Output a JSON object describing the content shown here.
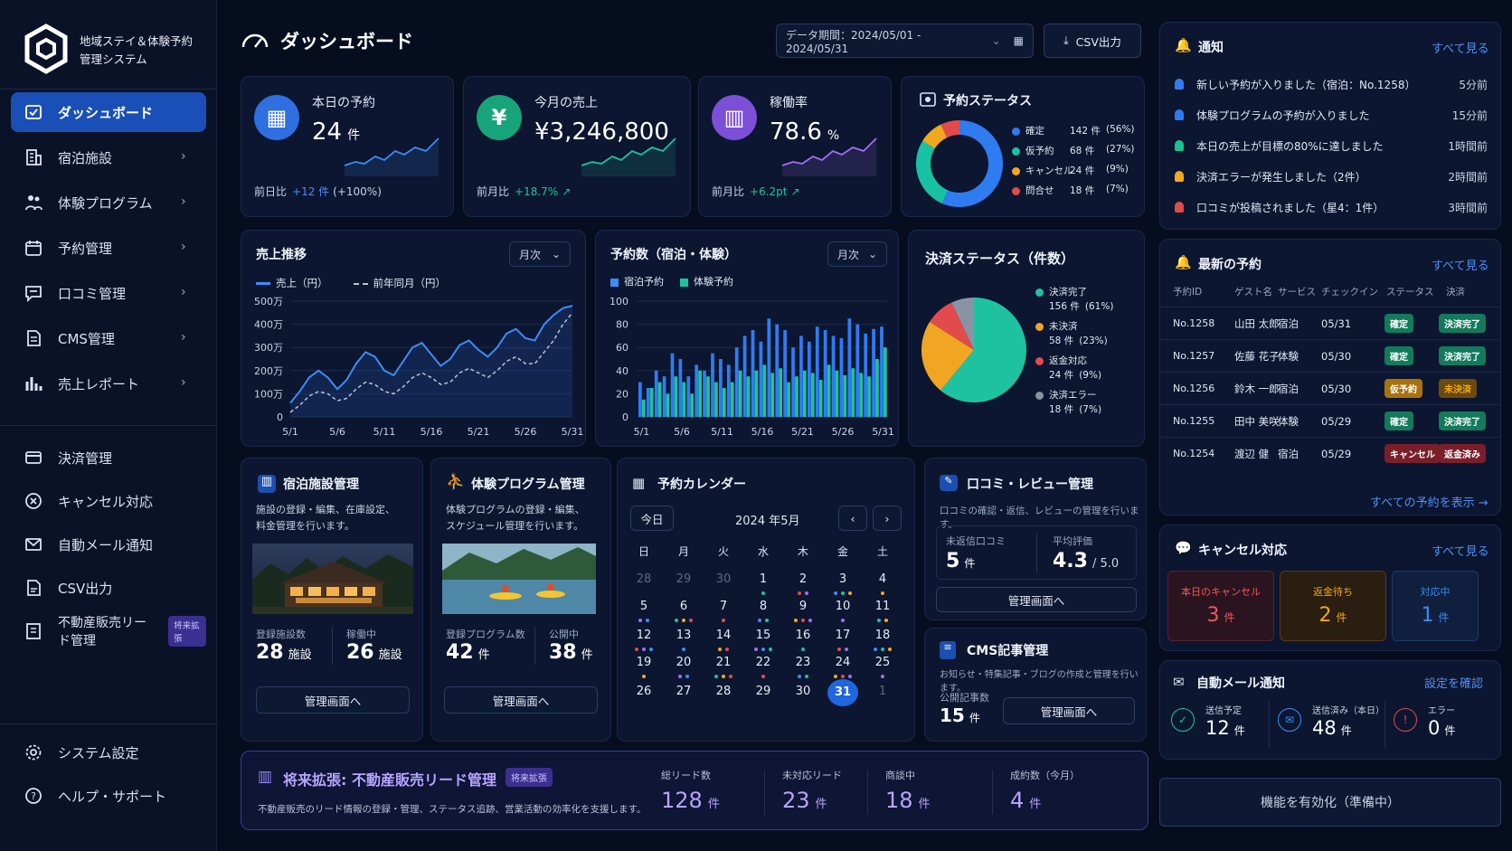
{
  "app": {
    "title_line1": "地域ステイ＆体験予約",
    "title_line2": "管理システム"
  },
  "sidebar": {
    "items": [
      {
        "label": "ダッシュボード",
        "icon": "dashboard-icon"
      },
      {
        "label": "宿泊施設",
        "icon": "building-icon"
      },
      {
        "label": "体験プログラム",
        "icon": "people-icon"
      },
      {
        "label": "予約管理",
        "icon": "calendar-icon"
      },
      {
        "label": "口コミ管理",
        "icon": "chat-icon"
      },
      {
        "label": "CMS管理",
        "icon": "document-icon"
      },
      {
        "label": "売上レポート",
        "icon": "bar-chart-icon"
      }
    ],
    "items2": [
      {
        "label": "決済管理",
        "icon": "card-icon"
      },
      {
        "label": "キャンセル対応",
        "icon": "cancel-icon"
      },
      {
        "label": "自動メール通知",
        "icon": "mail-icon"
      },
      {
        "label": "CSV出力",
        "icon": "csv-icon"
      },
      {
        "label": "不動産販売リード管理",
        "icon": "realestate-icon",
        "badge": "将来拡張"
      }
    ],
    "bottom": [
      {
        "label": "システム設定",
        "icon": "gear-icon"
      },
      {
        "label": "ヘルプ・サポート",
        "icon": "help-icon"
      }
    ]
  },
  "header": {
    "title": "ダッシュボード",
    "period": "データ期間：2024/05/01 - 2024/05/31",
    "csv": "CSV出力"
  },
  "kpi": [
    {
      "label": "本日の予約",
      "value": "24",
      "unit": "件",
      "cmp_label": "前日比",
      "cmp_value": "+12 件",
      "cmp_extra": "(+100%)",
      "color": "#2f6fe0"
    },
    {
      "label": "今月の売上",
      "value": "¥3,246,800",
      "unit": "",
      "cmp_label": "前月比",
      "cmp_value": "+18.7%",
      "cmp_extra": "↗",
      "color": "#17a47a"
    },
    {
      "label": "稼働率",
      "value": "78.6",
      "unit": "%",
      "cmp_label": "前月比",
      "cmp_value": "+6.2pt",
      "cmp_extra": "↗",
      "color": "#7b4fd6"
    }
  ],
  "reservation_status": {
    "title": "予約ステータス",
    "items": [
      {
        "label": "確定",
        "value": "142 件",
        "pct": "(56%)",
        "color": "#2e7cf0",
        "frac": 0.56
      },
      {
        "label": "仮予約",
        "value": "68 件",
        "pct": "(27%)",
        "color": "#19c1a3",
        "frac": 0.27
      },
      {
        "label": "キャンセル",
        "value": "24 件",
        "pct": "(9%)",
        "color": "#f2a81e",
        "frac": 0.09
      },
      {
        "label": "問合せ",
        "value": "18 件",
        "pct": "(7%)",
        "color": "#e24b4b",
        "frac": 0.07
      }
    ]
  },
  "sales_trend": {
    "title": "売上推移",
    "period": "月次",
    "legend_current": "売上（円）",
    "legend_prev": "前年同月（円）",
    "yticks": [
      "500万",
      "400万",
      "300万",
      "200万",
      "100万",
      "0"
    ],
    "xticks": [
      "5/1",
      "5/6",
      "5/11",
      "5/16",
      "5/21",
      "5/26",
      "5/31"
    ]
  },
  "bookings": {
    "title": "予約数（宿泊・体験）",
    "period": "月次",
    "legend_stay": "宿泊予約",
    "legend_exp": "体験予約",
    "yticks": [
      "100",
      "80",
      "60",
      "40",
      "20",
      "0"
    ],
    "xticks": [
      "5/1",
      "5/6",
      "5/11",
      "5/16",
      "5/21",
      "5/26",
      "5/31"
    ]
  },
  "payment": {
    "title": "決済ステータス（件数）",
    "items": [
      {
        "label": "決済完了",
        "value": "156 件",
        "pct": "(61%)",
        "color": "#1fc2a0",
        "frac": 0.61
      },
      {
        "label": "未決済",
        "value": "58 件",
        "pct": "(23%)",
        "color": "#f0a623",
        "frac": 0.23
      },
      {
        "label": "返金対応",
        "value": "24 件",
        "pct": "(9%)",
        "color": "#e24b4b",
        "frac": 0.09
      },
      {
        "label": "決済エラー",
        "value": "18 件",
        "pct": "(7%)",
        "color": "#8a93a6",
        "frac": 0.07
      }
    ]
  },
  "chart_data": [
    {
      "type": "line",
      "title": "売上推移",
      "x": [
        "5/1",
        "5/2",
        "5/3",
        "5/4",
        "5/5",
        "5/6",
        "5/7",
        "5/8",
        "5/9",
        "5/10",
        "5/11",
        "5/12",
        "5/13",
        "5/14",
        "5/15",
        "5/16",
        "5/17",
        "5/18",
        "5/19",
        "5/20",
        "5/21",
        "5/22",
        "5/23",
        "5/24",
        "5/25",
        "5/26",
        "5/27",
        "5/28",
        "5/29",
        "5/30",
        "5/31"
      ],
      "series": [
        {
          "name": "売上（円）",
          "values": [
            60,
            110,
            170,
            200,
            170,
            120,
            160,
            230,
            280,
            260,
            200,
            180,
            240,
            300,
            320,
            270,
            220,
            250,
            310,
            330,
            290,
            260,
            300,
            360,
            380,
            340,
            330,
            400,
            440,
            470,
            480
          ]
        },
        {
          "name": "前年同月（円）",
          "values": [
            20,
            50,
            90,
            110,
            100,
            70,
            80,
            120,
            150,
            140,
            110,
            100,
            130,
            170,
            190,
            170,
            140,
            150,
            190,
            210,
            190,
            170,
            200,
            240,
            260,
            230,
            230,
            280,
            330,
            400,
            450
          ]
        }
      ],
      "ylim": [
        0,
        500
      ]
    },
    {
      "type": "bar",
      "title": "予約数（宿泊・体験）",
      "categories": [
        "5/1",
        "5/2",
        "5/3",
        "5/4",
        "5/5",
        "5/6",
        "5/7",
        "5/8",
        "5/9",
        "5/10",
        "5/11",
        "5/12",
        "5/13",
        "5/14",
        "5/15",
        "5/16",
        "5/17",
        "5/18",
        "5/19",
        "5/20",
        "5/21",
        "5/22",
        "5/23",
        "5/24",
        "5/25",
        "5/26",
        "5/27",
        "5/28",
        "5/29",
        "5/30",
        "5/31"
      ],
      "series": [
        {
          "name": "宿泊予約",
          "values": [
            30,
            25,
            40,
            35,
            55,
            50,
            35,
            45,
            40,
            55,
            50,
            45,
            60,
            70,
            75,
            65,
            85,
            80,
            75,
            60,
            70,
            65,
            78,
            75,
            70,
            68,
            85,
            80,
            72,
            76,
            78
          ]
        },
        {
          "name": "体験予約",
          "values": [
            15,
            25,
            30,
            20,
            35,
            30,
            20,
            40,
            35,
            30,
            25,
            30,
            40,
            35,
            40,
            45,
            38,
            42,
            30,
            35,
            40,
            38,
            32,
            45,
            40,
            36,
            42,
            38,
            35,
            50,
            60
          ]
        }
      ],
      "ylim": [
        0,
        100
      ]
    }
  ],
  "facility": {
    "title": "宿泊施設管理",
    "desc1": "施設の登録・編集、在庫設定、",
    "desc2": "料金管理を行います。",
    "s1_label": "登録施設数",
    "s1_value": "28",
    "s1_unit": "施設",
    "s2_label": "稼働中",
    "s2_value": "26",
    "s2_unit": "施設",
    "btn": "管理画面へ"
  },
  "program": {
    "title": "体験プログラム管理",
    "desc1": "体験プログラムの登録・編集、",
    "desc2": "スケジュール管理を行います。",
    "s1_label": "登録プログラム数",
    "s1_value": "42",
    "s1_unit": "件",
    "s2_label": "公開中",
    "s2_value": "38",
    "s2_unit": "件",
    "btn": "管理画面へ"
  },
  "calendar": {
    "title": "予約カレンダー",
    "today": "今日",
    "month": "2024 年5月",
    "weekdays": [
      "日",
      "月",
      "火",
      "水",
      "木",
      "金",
      "土"
    ],
    "days": [
      "28",
      "29",
      "30",
      "1",
      "2",
      "3",
      "4",
      "5",
      "6",
      "7",
      "8",
      "9",
      "10",
      "11",
      "12",
      "13",
      "14",
      "15",
      "16",
      "17",
      "18",
      "19",
      "20",
      "21",
      "22",
      "23",
      "24",
      "25",
      "26",
      "27",
      "28",
      "29",
      "30",
      "31",
      "1"
    ]
  },
  "review": {
    "title": "口コミ・レビュー管理",
    "desc": "口コミの確認・返信、レビューの管理を行います。",
    "s1_label": "未返信口コミ",
    "s1_value": "5",
    "s1_unit": "件",
    "s2_label": "平均評価",
    "s2_value": "4.3",
    "s2_unit": "/ 5.0",
    "btn": "管理画面へ"
  },
  "cms": {
    "title": "CMS記事管理",
    "desc": "お知らせ・特集記事・ブログの作成と管理を行います。",
    "s1_label": "公開記事数",
    "s1_value": "15",
    "s1_unit": "件",
    "btn": "管理画面へ"
  },
  "lead": {
    "title": "将来拡張: 不動産販売リード管理",
    "badge": "将来拡張",
    "desc": "不動産販売のリード情報の登録・管理、ステータス追跡、営業活動の効率化を支援します。",
    "stats": [
      {
        "label": "総リード数",
        "value": "128",
        "unit": "件"
      },
      {
        "label": "未対応リード",
        "value": "23",
        "unit": "件"
      },
      {
        "label": "商談中",
        "value": "18",
        "unit": "件"
      },
      {
        "label": "成約数（今月）",
        "value": "4",
        "unit": "件"
      }
    ]
  },
  "notifications": {
    "title": "通知",
    "see_all": "すべて見る",
    "items": [
      {
        "text": "新しい予約が入りました（宿泊：No.1258）",
        "time": "5分前",
        "color": "#2f7cf2"
      },
      {
        "text": "体験プログラムの予約が入りました",
        "time": "15分前",
        "color": "#2f7cf2"
      },
      {
        "text": "本日の売上が目標の80%に達しました",
        "time": "1時間前",
        "color": "#19c28f"
      },
      {
        "text": "決済エラーが発生しました（2件）",
        "time": "2時間前",
        "color": "#f2a81e"
      },
      {
        "text": "口コミが投稿されました（星4：1件）",
        "time": "3時間前",
        "color": "#e24b4b"
      }
    ]
  },
  "recent": {
    "title": "最新の予約",
    "see_all": "すべて見る",
    "headers": [
      "予約ID",
      "ゲスト名",
      "サービス",
      "チェックイン",
      "ステータス",
      "決済"
    ],
    "rows": [
      {
        "id": "No.1258",
        "guest": "山田 太郎",
        "service": "宿泊",
        "date": "05/31",
        "status": "確定",
        "pay": "決済完了",
        "sc": "#137a5c",
        "pc": "#137a5c"
      },
      {
        "id": "No.1257",
        "guest": "佐藤 花子",
        "service": "体験",
        "date": "05/30",
        "status": "確定",
        "pay": "決済完了",
        "sc": "#137a5c",
        "pc": "#137a5c"
      },
      {
        "id": "No.1256",
        "guest": "鈴木 一郎",
        "service": "宿泊",
        "date": "05/30",
        "status": "仮予約",
        "pay": "未決済",
        "sc": "#a8720f",
        "pc": "#6b4a10"
      },
      {
        "id": "No.1255",
        "guest": "田中 美咲",
        "service": "体験",
        "date": "05/29",
        "status": "確定",
        "pay": "決済完了",
        "sc": "#137a5c",
        "pc": "#137a5c"
      },
      {
        "id": "No.1254",
        "guest": "渡辺 健",
        "service": "宿泊",
        "date": "05/29",
        "status": "キャンセル",
        "pay": "返金済み",
        "sc": "#7a1f2a",
        "pc": "#7a1f2a"
      }
    ],
    "all_link": "すべての予約を表示"
  },
  "cancel": {
    "title": "キャンセル対応",
    "see_all": "すべて見る",
    "items": [
      {
        "label": "本日のキャンセル",
        "value": "3",
        "unit": "件",
        "color": "#ef5a5a"
      },
      {
        "label": "返金待ち",
        "value": "2",
        "unit": "件",
        "color": "#f2a81e"
      },
      {
        "label": "対応中",
        "value": "1",
        "unit": "件",
        "color": "#3d8cf5"
      }
    ]
  },
  "mail": {
    "title": "自動メール通知",
    "link": "設定を確認",
    "items": [
      {
        "label": "送信予定",
        "value": "12",
        "unit": "件"
      },
      {
        "label": "送信済み（本日）",
        "value": "48",
        "unit": "件"
      },
      {
        "label": "エラー",
        "value": "0",
        "unit": "件"
      }
    ]
  },
  "enable_btn": "機能を有効化（準備中）"
}
